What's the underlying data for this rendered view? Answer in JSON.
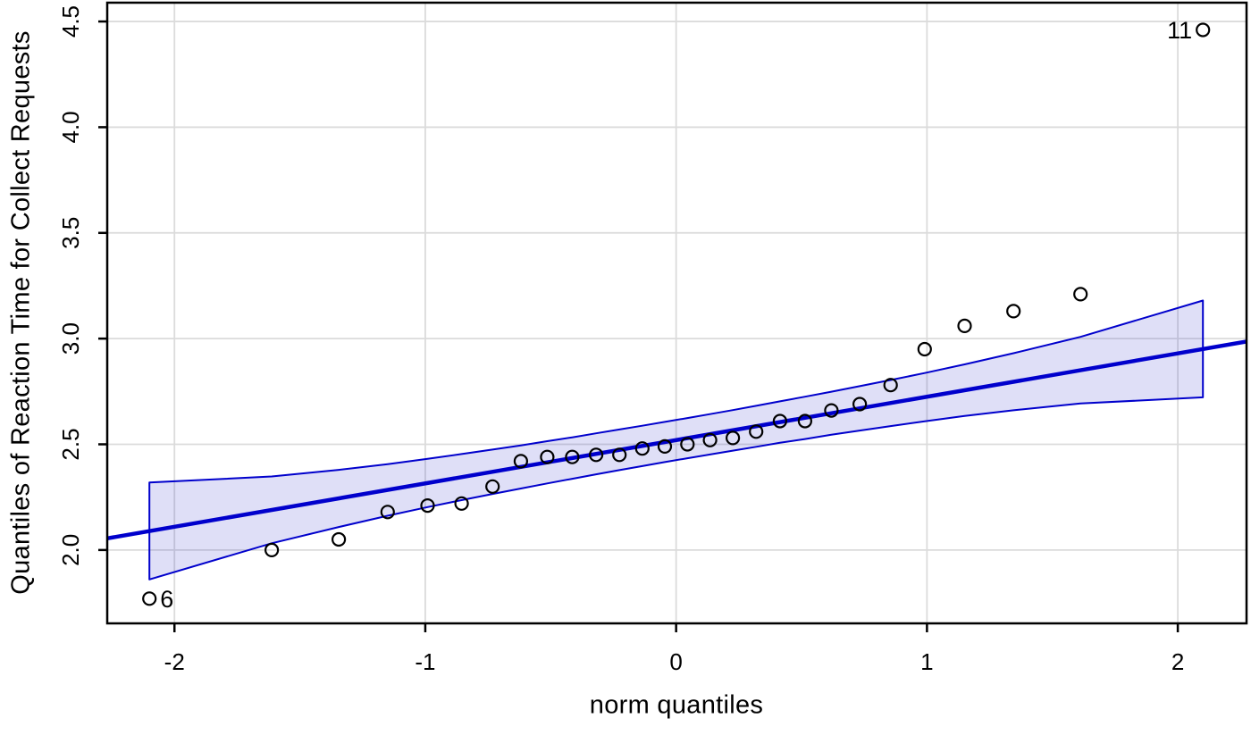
{
  "chart_data": {
    "type": "scatter",
    "subtype": "qq-plot",
    "title": "",
    "xlabel": "norm quantiles",
    "ylabel": "Quantiles of Reaction Time for Collect Requests",
    "xlim": [
      -2.268,
      2.274
    ],
    "ylim": [
      1.653,
      4.589
    ],
    "x_ticks": [
      "-2",
      "-1",
      "0",
      "1",
      "2"
    ],
    "y_ticks": [
      "2.0",
      "2.5",
      "3.0",
      "3.5",
      "4.0",
      "4.5"
    ],
    "grid": true,
    "legend": "none",
    "n_points": 28,
    "points": {
      "x": [
        -2.1,
        -1.612,
        -1.345,
        -1.15,
        -0.991,
        -0.855,
        -0.732,
        -0.619,
        -0.514,
        -0.414,
        -0.319,
        -0.226,
        -0.135,
        -0.045,
        0.045,
        0.135,
        0.226,
        0.319,
        0.414,
        0.514,
        0.619,
        0.732,
        0.855,
        0.991,
        1.15,
        1.345,
        1.612,
        2.1
      ],
      "y": [
        1.77,
        2.0,
        2.05,
        2.18,
        2.21,
        2.22,
        2.3,
        2.42,
        2.44,
        2.44,
        2.45,
        2.45,
        2.48,
        2.49,
        2.5,
        2.52,
        2.53,
        2.56,
        2.61,
        2.61,
        2.66,
        2.69,
        2.78,
        2.95,
        3.06,
        3.13,
        3.21,
        4.46
      ]
    },
    "outlier_labels": [
      {
        "text": "6",
        "x": -2.1,
        "y": 1.77,
        "side": "right"
      },
      {
        "text": "11",
        "x": 2.1,
        "y": 4.46,
        "side": "left"
      }
    ],
    "fit_line": {
      "intercept": 2.52,
      "slope": 0.205
    },
    "envelope": {
      "x": [
        -2.1,
        -1.612,
        -1.345,
        -1.15,
        -0.991,
        -0.855,
        -0.732,
        -0.619,
        -0.514,
        -0.414,
        -0.319,
        -0.226,
        -0.135,
        -0.045,
        0.045,
        0.135,
        0.226,
        0.319,
        0.414,
        0.514,
        0.619,
        0.732,
        0.855,
        0.991,
        1.15,
        1.345,
        1.612,
        2.1
      ],
      "upper": [
        2.319,
        2.348,
        2.379,
        2.406,
        2.431,
        2.454,
        2.475,
        2.495,
        2.515,
        2.533,
        2.552,
        2.57,
        2.588,
        2.606,
        2.624,
        2.643,
        2.662,
        2.682,
        2.703,
        2.725,
        2.749,
        2.775,
        2.804,
        2.837,
        2.878,
        2.931,
        3.008,
        3.18
      ],
      "lower": [
        1.861,
        2.032,
        2.109,
        2.162,
        2.203,
        2.236,
        2.265,
        2.291,
        2.315,
        2.337,
        2.358,
        2.378,
        2.397,
        2.416,
        2.434,
        2.452,
        2.47,
        2.488,
        2.507,
        2.525,
        2.545,
        2.565,
        2.586,
        2.609,
        2.634,
        2.661,
        2.693,
        2.722
      ]
    },
    "colors": {
      "line": "#0000CC",
      "envelope_edge": "#0000CC",
      "envelope_fill": "rgba(25,25,200,0.14)",
      "point_stroke": "#000000",
      "grid": "#DBDBDB",
      "axis": "#000000",
      "background": "#FFFFFF"
    }
  }
}
